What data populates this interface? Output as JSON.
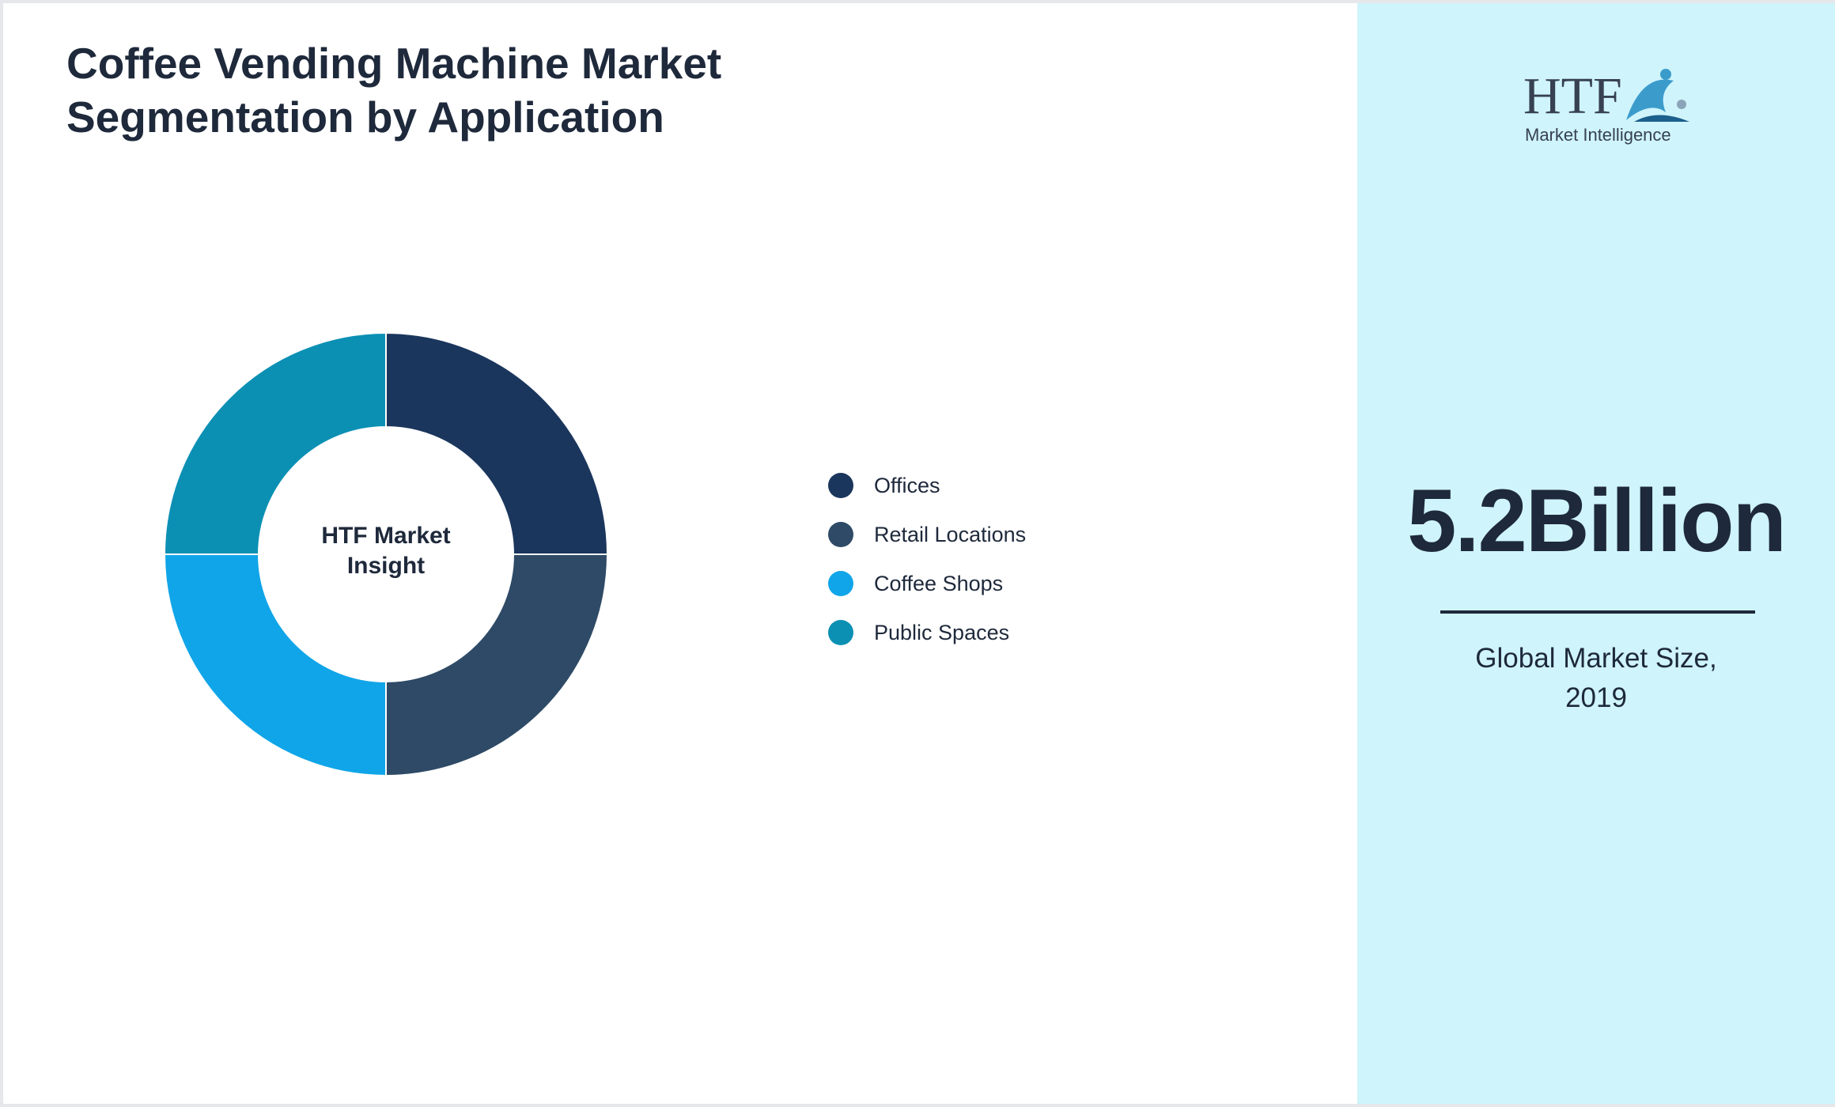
{
  "chart_data": {
    "type": "pie",
    "title": "Coffee Vending Machine Market Segmentation by Application",
    "center_label": "HTF Market Insight",
    "categories": [
      "Offices",
      "Retail Locations",
      "Coffee Shops",
      "Public Spaces"
    ],
    "values": [
      25,
      25,
      25,
      25
    ],
    "colors": [
      "#1b365d",
      "#2e4a66",
      "#10a5e8",
      "#0b90b4"
    ],
    "legend": "right"
  },
  "logo": {
    "name": "HTF",
    "tagline": "Market Intelligence"
  },
  "metric": {
    "value": "5.2Billion",
    "caption": "Global Market Size, 2019"
  }
}
